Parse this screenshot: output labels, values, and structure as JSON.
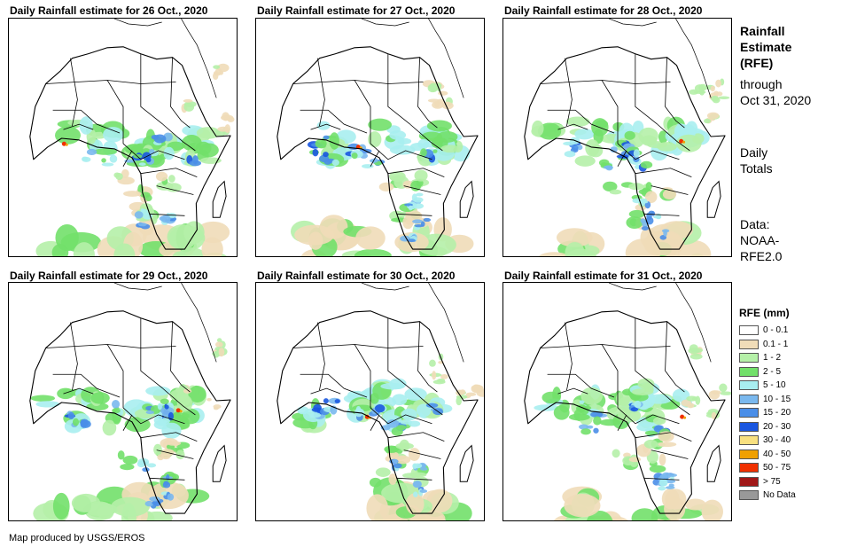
{
  "panels": [
    {
      "title": "Daily Rainfall estimate for 26 Oct., 2020",
      "day": 26
    },
    {
      "title": "Daily Rainfall estimate for 27 Oct., 2020",
      "day": 27
    },
    {
      "title": "Daily Rainfall estimate for 28 Oct., 2020",
      "day": 28
    },
    {
      "title": "Daily Rainfall estimate for 29 Oct., 2020",
      "day": 29
    },
    {
      "title": "Daily Rainfall estimate for 30 Oct., 2020",
      "day": 30
    },
    {
      "title": "Daily Rainfall estimate for 31 Oct., 2020",
      "day": 31
    }
  ],
  "side": {
    "title_line1": "Rainfall",
    "title_line2": "Estimate",
    "title_line3": "(RFE)",
    "through_line1": "through",
    "through_line2": "Oct 31, 2020",
    "totals_line1": "Daily",
    "totals_line2": "Totals",
    "data_line1": "Data:",
    "data_line2": "NOAA-",
    "data_line3": "RFE2.0"
  },
  "legend": {
    "title": "RFE (mm)",
    "items": [
      {
        "label": "0 - 0.1",
        "color": "#ffffff"
      },
      {
        "label": "0.1 - 1",
        "color": "#f0dcb8"
      },
      {
        "label": "1 - 2",
        "color": "#b5f0a8"
      },
      {
        "label": "2 - 5",
        "color": "#72e06a"
      },
      {
        "label": "5 - 10",
        "color": "#a8eef0"
      },
      {
        "label": "10 - 15",
        "color": "#7ab8ee"
      },
      {
        "label": "15 - 20",
        "color": "#4a8ee8"
      },
      {
        "label": "20 - 30",
        "color": "#1a56e0"
      },
      {
        "label": "30 - 40",
        "color": "#f8e080"
      },
      {
        "label": "40 - 50",
        "color": "#f0a000"
      },
      {
        "label": "50 - 75",
        "color": "#f03000"
      },
      {
        "label": "> 75",
        "color": "#a01818"
      },
      {
        "label": "No Data",
        "color": "#999999"
      }
    ]
  },
  "credit": "Map produced by USGS/EROS"
}
